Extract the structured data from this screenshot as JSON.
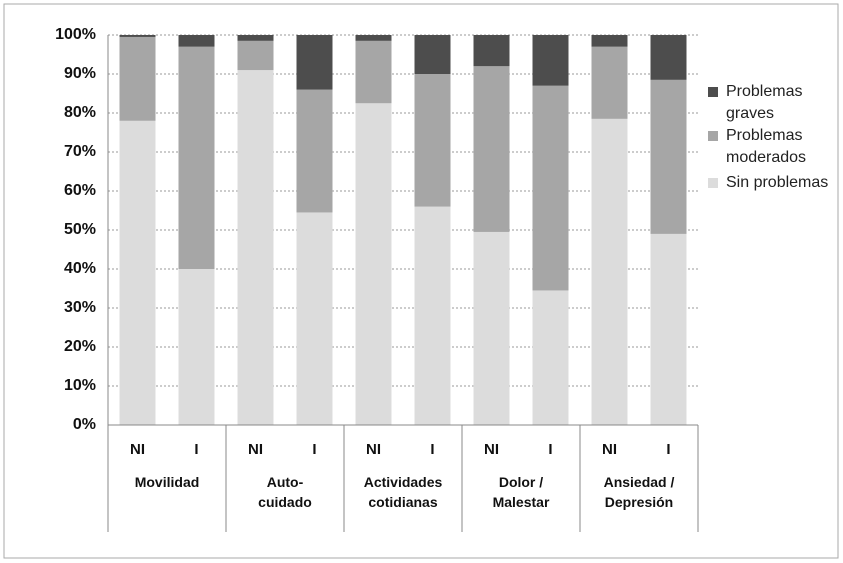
{
  "chart_data": {
    "type": "stacked_bar",
    "categories": [
      "NI",
      "I",
      "NI",
      "I",
      "NI",
      "I",
      "NI",
      "I",
      "NI",
      "I"
    ],
    "groups": [
      "Movilidad",
      "Auto-cuidado",
      "Actividades cotidianas",
      "Dolor / Malestar",
      "Ansiedad / Depresión"
    ],
    "series": [
      {
        "name": "Sin problemas",
        "color": "#dcdcdc",
        "values": [
          78,
          40,
          91,
          54.5,
          82.5,
          56,
          49.5,
          34.5,
          78.5,
          49
        ]
      },
      {
        "name": "Problemas moderados",
        "color": "#a6a6a6",
        "values": [
          21.5,
          57,
          7.5,
          31.5,
          16,
          34,
          42.5,
          52.5,
          18.5,
          39.5
        ]
      },
      {
        "name": "Problemas graves",
        "color": "#4d4d4d",
        "values": [
          0.5,
          3,
          1.5,
          14,
          1.5,
          10,
          8,
          13,
          3,
          11.5
        ]
      }
    ],
    "ylim": [
      0,
      100
    ],
    "yticks": [
      {
        "value": 0,
        "label": "0%"
      },
      {
        "value": 10,
        "label": "10%"
      },
      {
        "value": 20,
        "label": "20%"
      },
      {
        "value": 30,
        "label": "30%"
      },
      {
        "value": 40,
        "label": "40%"
      },
      {
        "value": 50,
        "label": "50%"
      },
      {
        "value": 60,
        "label": "60%"
      },
      {
        "value": 70,
        "label": "70%"
      },
      {
        "value": 80,
        "label": "80%"
      },
      {
        "value": 90,
        "label": "90%"
      },
      {
        "value": 100,
        "label": "100%"
      }
    ],
    "grid": true,
    "legend": "right"
  }
}
